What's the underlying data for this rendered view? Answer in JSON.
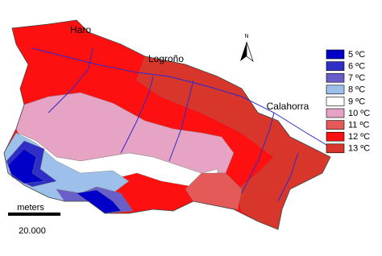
{
  "cities": [
    "Haro",
    "Logroño",
    "Calahorra"
  ],
  "north": "N",
  "legend": [
    {
      "label": "5 ºC",
      "color": "#0000c8"
    },
    {
      "label": "6 ºC",
      "color": "#2f2fc8"
    },
    {
      "label": "7 ºC",
      "color": "#6a5fc8"
    },
    {
      "label": "8 ºC",
      "color": "#9cc0ea"
    },
    {
      "label": "9 ºC",
      "color": "#ffffff"
    },
    {
      "label": "10 ºC",
      "color": "#e6a3c3"
    },
    {
      "label": "11 ºC",
      "color": "#e35a58"
    },
    {
      "label": "12 ºC",
      "color": "#ff1010"
    },
    {
      "label": "13 ºC",
      "color": "#d8362a"
    }
  ],
  "scale": {
    "unit": "meters",
    "label": "20.000"
  }
}
